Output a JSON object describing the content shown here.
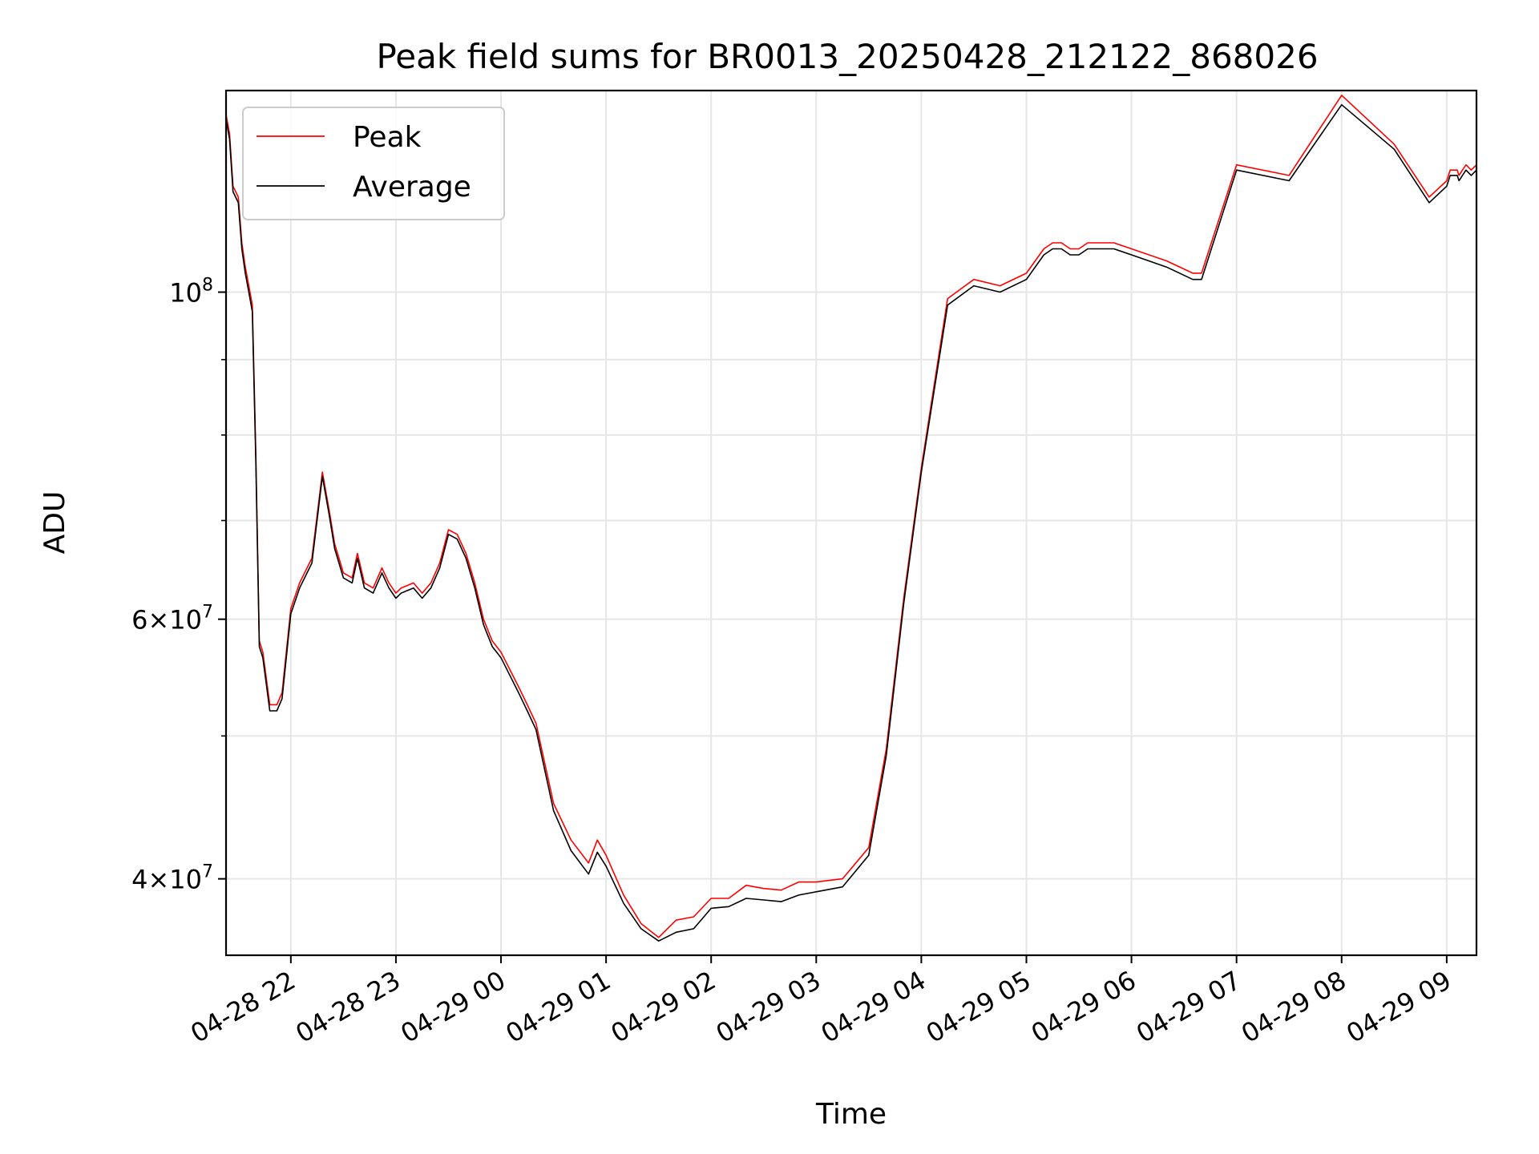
{
  "chart_data": {
    "type": "line",
    "title": "Peak field sums for BR0013_20250428_212122_868026",
    "xlabel": "Time",
    "ylabel": "ADU",
    "yscale": "log",
    "grid": true,
    "legend_position": "top-left",
    "xlim": [
      "2025-04-28 21:23",
      "2025-04-29 09:17"
    ],
    "ylim": [
      35500000,
      137000000
    ],
    "x_ticks": [
      {
        "value": "2025-04-28 22:00",
        "label": "04-28 22"
      },
      {
        "value": "2025-04-28 23:00",
        "label": "04-28 23"
      },
      {
        "value": "2025-04-29 00:00",
        "label": "04-29 00"
      },
      {
        "value": "2025-04-29 01:00",
        "label": "04-29 01"
      },
      {
        "value": "2025-04-29 02:00",
        "label": "04-29 02"
      },
      {
        "value": "2025-04-29 03:00",
        "label": "04-29 03"
      },
      {
        "value": "2025-04-29 04:00",
        "label": "04-29 04"
      },
      {
        "value": "2025-04-29 05:00",
        "label": "04-29 05"
      },
      {
        "value": "2025-04-29 06:00",
        "label": "04-29 06"
      },
      {
        "value": "2025-04-29 07:00",
        "label": "04-29 07"
      },
      {
        "value": "2025-04-29 08:00",
        "label": "04-29 08"
      },
      {
        "value": "2025-04-29 09:00",
        "label": "04-29 09"
      }
    ],
    "y_ticks_major": [
      {
        "value": 40000000,
        "base": "4",
        "exp": "7",
        "mult": true
      },
      {
        "value": 60000000,
        "base": "6",
        "exp": "7",
        "mult": true
      },
      {
        "value": 100000000,
        "base": "10",
        "exp": "8",
        "mult": false
      }
    ],
    "y_ticks_minor": [
      50000000,
      70000000,
      80000000,
      90000000
    ],
    "series": [
      {
        "name": "Peak",
        "color": "#ff0000",
        "x": [
          "2025-04-28 21:23",
          "2025-04-28 21:25",
          "2025-04-28 21:27",
          "2025-04-28 21:30",
          "2025-04-28 21:32",
          "2025-04-28 21:34",
          "2025-04-28 21:36",
          "2025-04-28 21:38",
          "2025-04-28 21:40",
          "2025-04-28 21:42",
          "2025-04-28 21:44",
          "2025-04-28 21:48",
          "2025-04-28 21:52",
          "2025-04-28 21:55",
          "2025-04-28 22:00",
          "2025-04-28 22:05",
          "2025-04-28 22:12",
          "2025-04-28 22:18",
          "2025-04-28 22:22",
          "2025-04-28 22:25",
          "2025-04-28 22:30",
          "2025-04-28 22:35",
          "2025-04-28 22:38",
          "2025-04-28 22:42",
          "2025-04-28 22:47",
          "2025-04-28 22:52",
          "2025-04-28 22:56",
          "2025-04-28 23:00",
          "2025-04-28 23:03",
          "2025-04-28 23:10",
          "2025-04-28 23:15",
          "2025-04-28 23:20",
          "2025-04-28 23:25",
          "2025-04-28 23:30",
          "2025-04-28 23:35",
          "2025-04-28 23:40",
          "2025-04-28 23:45",
          "2025-04-28 23:50",
          "2025-04-28 23:55",
          "2025-04-29 00:00",
          "2025-04-29 00:10",
          "2025-04-29 00:15",
          "2025-04-29 00:20",
          "2025-04-29 00:30",
          "2025-04-29 00:40",
          "2025-04-29 00:50",
          "2025-04-29 00:55",
          "2025-04-29 01:00",
          "2025-04-29 01:10",
          "2025-04-29 01:20",
          "2025-04-29 01:30",
          "2025-04-29 01:40",
          "2025-04-29 01:50",
          "2025-04-29 02:00",
          "2025-04-29 02:10",
          "2025-04-29 02:20",
          "2025-04-29 02:30",
          "2025-04-29 02:40",
          "2025-04-29 02:50",
          "2025-04-29 03:00",
          "2025-04-29 03:15",
          "2025-04-29 03:30",
          "2025-04-29 03:40",
          "2025-04-29 03:50",
          "2025-04-29 04:00",
          "2025-04-29 04:15",
          "2025-04-29 04:30",
          "2025-04-29 04:45",
          "2025-04-29 05:00",
          "2025-04-29 05:10",
          "2025-04-29 05:15",
          "2025-04-29 05:20",
          "2025-04-29 05:25",
          "2025-04-29 05:30",
          "2025-04-29 05:35",
          "2025-04-29 05:40",
          "2025-04-29 05:45",
          "2025-04-29 05:50",
          "2025-04-29 06:00",
          "2025-04-29 06:20",
          "2025-04-29 06:35",
          "2025-04-29 06:40",
          "2025-04-29 07:00",
          "2025-04-29 07:30",
          "2025-04-29 08:00",
          "2025-04-29 08:30",
          "2025-04-29 08:50",
          "2025-04-29 09:00",
          "2025-04-29 09:02",
          "2025-04-29 09:04",
          "2025-04-29 09:06",
          "2025-04-29 09:07",
          "2025-04-29 09:09",
          "2025-04-29 09:11",
          "2025-04-29 09:14",
          "2025-04-29 09:17"
        ],
        "y": [
          132000000,
          128000000,
          118000000,
          116000000,
          108000000,
          104000000,
          101000000,
          98000000,
          78000000,
          58000000,
          57000000,
          52500000,
          52500000,
          53500000,
          61000000,
          63500000,
          66000000,
          75500000,
          71000000,
          67500000,
          64500000,
          64000000,
          66500000,
          63500000,
          63000000,
          65000000,
          63500000,
          62500000,
          63000000,
          63500000,
          62500000,
          63500000,
          65500000,
          69000000,
          68500000,
          66500000,
          63500000,
          60000000,
          58000000,
          57000000,
          54000000,
          52500000,
          51000000,
          45000000,
          42500000,
          41000000,
          42500000,
          41500000,
          39000000,
          37300000,
          36500000,
          37500000,
          37700000,
          38800000,
          38800000,
          39600000,
          39400000,
          39300000,
          39800000,
          39800000,
          40000000,
          42000000,
          49000000,
          62000000,
          76000000,
          99000000,
          102000000,
          101000000,
          103000000,
          107000000,
          108000000,
          108000000,
          107000000,
          107000000,
          108000000,
          108000000,
          108000000,
          108000000,
          107000000,
          105000000,
          103000000,
          103000000,
          122000000,
          120000000,
          136000000,
          126000000,
          116000000,
          119000000,
          121000000,
          121000000,
          121000000,
          120000000,
          121000000,
          122000000,
          121000000,
          122000000
        ]
      },
      {
        "name": "Average",
        "color": "#000000",
        "x": [
          "2025-04-28 21:23",
          "2025-04-28 21:25",
          "2025-04-28 21:27",
          "2025-04-28 21:30",
          "2025-04-28 21:32",
          "2025-04-28 21:34",
          "2025-04-28 21:36",
          "2025-04-28 21:38",
          "2025-04-28 21:40",
          "2025-04-28 21:42",
          "2025-04-28 21:44",
          "2025-04-28 21:48",
          "2025-04-28 21:52",
          "2025-04-28 21:55",
          "2025-04-28 22:00",
          "2025-04-28 22:05",
          "2025-04-28 22:12",
          "2025-04-28 22:18",
          "2025-04-28 22:22",
          "2025-04-28 22:25",
          "2025-04-28 22:30",
          "2025-04-28 22:35",
          "2025-04-28 22:38",
          "2025-04-28 22:42",
          "2025-04-28 22:47",
          "2025-04-28 22:52",
          "2025-04-28 22:56",
          "2025-04-28 23:00",
          "2025-04-28 23:03",
          "2025-04-28 23:10",
          "2025-04-28 23:15",
          "2025-04-28 23:20",
          "2025-04-28 23:25",
          "2025-04-28 23:30",
          "2025-04-28 23:35",
          "2025-04-28 23:40",
          "2025-04-28 23:45",
          "2025-04-28 23:50",
          "2025-04-28 23:55",
          "2025-04-29 00:00",
          "2025-04-29 00:10",
          "2025-04-29 00:15",
          "2025-04-29 00:20",
          "2025-04-29 00:30",
          "2025-04-29 00:40",
          "2025-04-29 00:50",
          "2025-04-29 00:55",
          "2025-04-29 01:00",
          "2025-04-29 01:10",
          "2025-04-29 01:20",
          "2025-04-29 01:30",
          "2025-04-29 01:40",
          "2025-04-29 01:50",
          "2025-04-29 02:00",
          "2025-04-29 02:10",
          "2025-04-29 02:20",
          "2025-04-29 02:30",
          "2025-04-29 02:40",
          "2025-04-29 02:50",
          "2025-04-29 03:00",
          "2025-04-29 03:15",
          "2025-04-29 03:30",
          "2025-04-29 03:40",
          "2025-04-29 03:50",
          "2025-04-29 04:00",
          "2025-04-29 04:15",
          "2025-04-29 04:30",
          "2025-04-29 04:45",
          "2025-04-29 05:00",
          "2025-04-29 05:10",
          "2025-04-29 05:15",
          "2025-04-29 05:20",
          "2025-04-29 05:25",
          "2025-04-29 05:30",
          "2025-04-29 05:35",
          "2025-04-29 05:40",
          "2025-04-29 05:45",
          "2025-04-29 05:50",
          "2025-04-29 06:00",
          "2025-04-29 06:20",
          "2025-04-29 06:35",
          "2025-04-29 06:40",
          "2025-04-29 07:00",
          "2025-04-29 07:30",
          "2025-04-29 08:00",
          "2025-04-29 08:30",
          "2025-04-29 08:50",
          "2025-04-29 09:00",
          "2025-04-29 09:02",
          "2025-04-29 09:04",
          "2025-04-29 09:06",
          "2025-04-29 09:07",
          "2025-04-29 09:09",
          "2025-04-29 09:11",
          "2025-04-29 09:14",
          "2025-04-29 09:17"
        ],
        "y": [
          131000000,
          127000000,
          117000000,
          115000000,
          107000000,
          103000000,
          100000000,
          97000000,
          77000000,
          57500000,
          56500000,
          52000000,
          52000000,
          53000000,
          60500000,
          63000000,
          65500000,
          75000000,
          70500000,
          67000000,
          64000000,
          63500000,
          66000000,
          63000000,
          62500000,
          64500000,
          63000000,
          62000000,
          62500000,
          63000000,
          62000000,
          63000000,
          65000000,
          68500000,
          68000000,
          66000000,
          63000000,
          59500000,
          57500000,
          56500000,
          53500000,
          52000000,
          50500000,
          44500000,
          41800000,
          40300000,
          41700000,
          40800000,
          38500000,
          37000000,
          36300000,
          36800000,
          37000000,
          38200000,
          38300000,
          38800000,
          38700000,
          38600000,
          39000000,
          39200000,
          39500000,
          41500000,
          48500000,
          61500000,
          75500000,
          98000000,
          101000000,
          100000000,
          102000000,
          106000000,
          107000000,
          107000000,
          106000000,
          106000000,
          107000000,
          107000000,
          107000000,
          107000000,
          106000000,
          104000000,
          102000000,
          102000000,
          121000000,
          119000000,
          134000000,
          125000000,
          115000000,
          118000000,
          120000000,
          120000000,
          120000000,
          119000000,
          120000000,
          121000000,
          120000000,
          121000000
        ]
      }
    ]
  }
}
